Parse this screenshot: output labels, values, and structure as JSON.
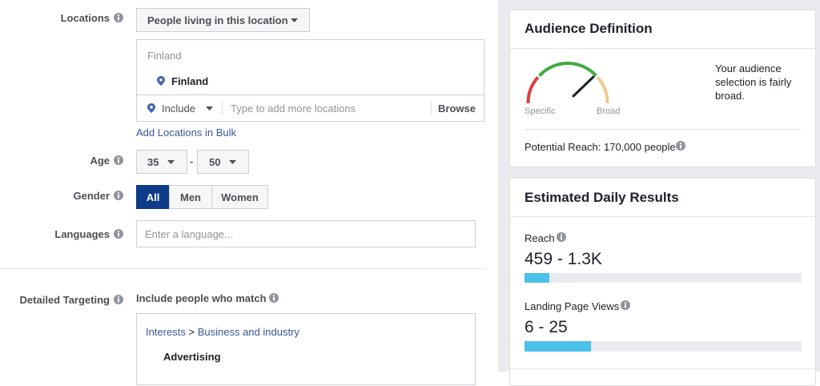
{
  "form": {
    "locations": {
      "label": "Locations",
      "dropdown": "People living in this location",
      "search_header": "Finland",
      "selected": "Finland",
      "include": "Include",
      "placeholder": "Type to add more locations",
      "browse": "Browse",
      "bulk_link": "Add Locations in Bulk"
    },
    "age": {
      "label": "Age",
      "min": 35,
      "separator": "-",
      "max": 50
    },
    "gender": {
      "label": "Gender",
      "options": [
        "All",
        "Men",
        "Women"
      ]
    },
    "languages": {
      "label": "Languages",
      "placeholder": "Enter a language..."
    },
    "detailed_targeting": {
      "label": "Detailed Targeting",
      "subtitle": "Include people who match",
      "breadcrumb": [
        "Interests",
        "Business and industry"
      ],
      "breadcrumb_separator": ">",
      "item": "Advertising"
    }
  },
  "audience_definition": {
    "title": "Audience Definition",
    "gauge_left": "Specific",
    "gauge_right": "Broad",
    "description": "Your audience selection is fairly broad.",
    "potential_reach": "Potential Reach: 170,000 people"
  },
  "estimated_daily_results": {
    "title": "Estimated Daily Results",
    "metrics": [
      {
        "label": "Reach",
        "value": "459 - 1.3K"
      },
      {
        "label": "Landing Page Views",
        "value": "6 - 25"
      }
    ]
  }
}
